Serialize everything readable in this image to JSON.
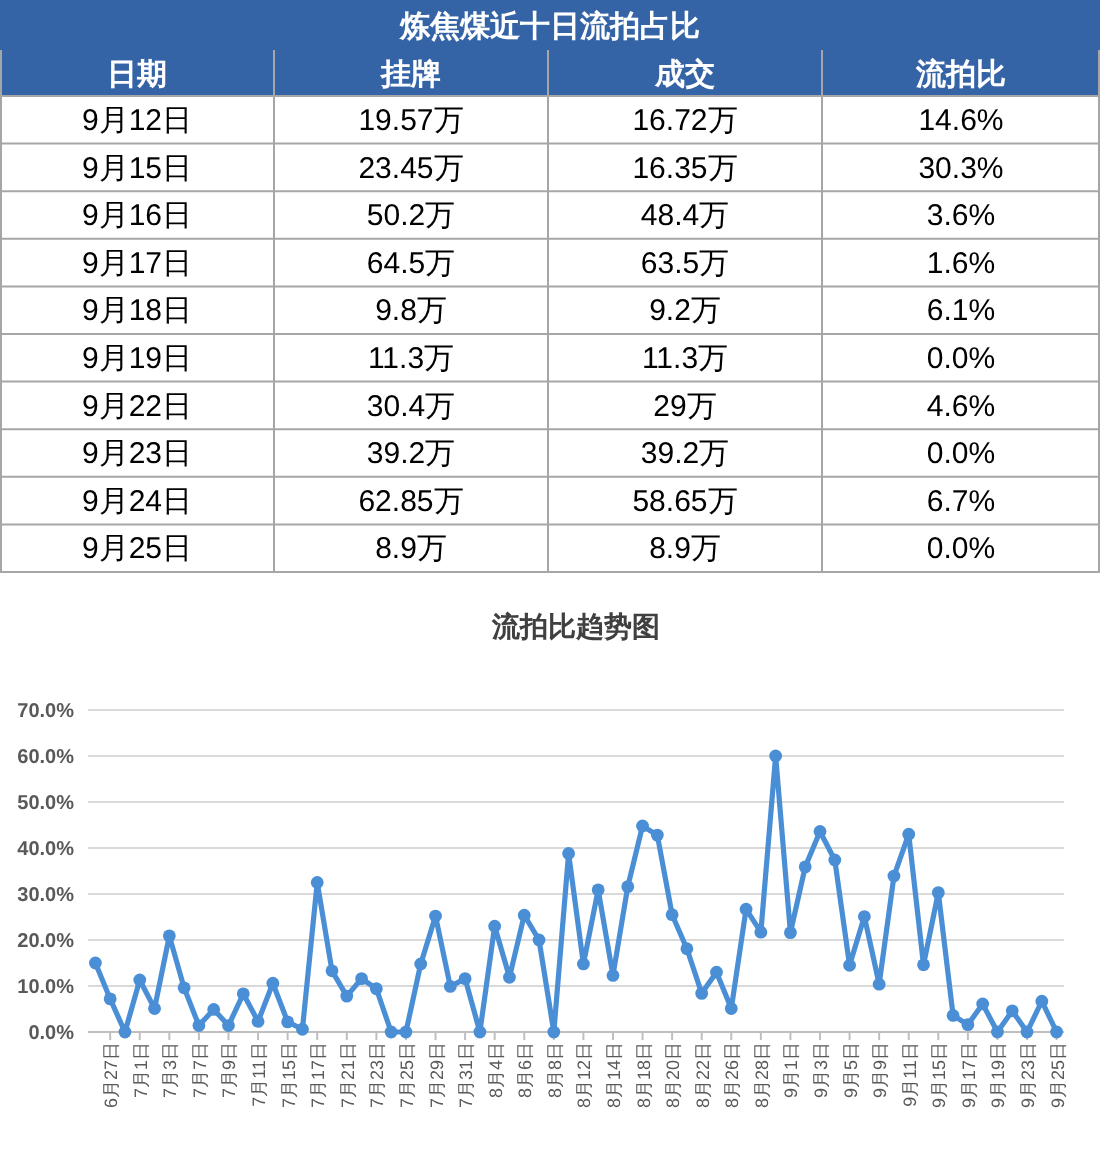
{
  "chart_data": [
    {
      "type": "other",
      "title": "炼焦煤近十日流拍占比",
      "ylabel": "日期",
      "categories": [
        "9月12日",
        "9月15日",
        "9月16日",
        "9月17日",
        "9月18日",
        "9月19日",
        "9月22日",
        "9月23日",
        "9月24日",
        "9月25日"
      ],
      "series": [
        {
          "name": "挂牌",
          "values": [
            19.57,
            23.45,
            50.2,
            64.5,
            9.8,
            11.3,
            30.4,
            39.2,
            62.85,
            8.9
          ],
          "value_labels": [
            "19.57万",
            "23.45万",
            "50.2万",
            "64.5万",
            "9.8万",
            "11.3万",
            "30.4万",
            "39.2万",
            "62.85万",
            "8.9万"
          ]
        },
        {
          "name": "成交",
          "values": [
            16.72,
            16.35,
            48.4,
            63.5,
            9.2,
            11.3,
            29,
            39.2,
            58.65,
            8.9
          ],
          "value_labels": [
            "16.72万",
            "16.35万",
            "48.4万",
            "63.5万",
            "9.2万",
            "11.3万",
            "29万",
            "39.2万",
            "58.65万",
            "8.9万"
          ]
        },
        {
          "name": "流拍比",
          "values": [
            14.6,
            30.3,
            3.6,
            1.6,
            6.1,
            0.0,
            4.6,
            0.0,
            6.7,
            0.0
          ],
          "value_labels": [
            "14.6%",
            "30.3%",
            "3.6%",
            "1.6%",
            "6.1%",
            "0.0%",
            "4.6%",
            "0.0%",
            "6.7%",
            "0.0%"
          ]
        }
      ]
    },
    {
      "type": "line",
      "title": "流拍比趋势图",
      "categories": [
        null,
        "6月27日",
        null,
        "7月1日",
        null,
        "7月3日",
        null,
        "7月7日",
        null,
        "7月9日",
        null,
        "7月11日",
        null,
        "7月15日",
        null,
        "7月17日",
        null,
        "7月21日",
        null,
        "7月23日",
        null,
        "7月25日",
        null,
        "7月29日",
        null,
        "7月31日",
        null,
        "8月4日",
        null,
        "8月6日",
        null,
        "8月8日",
        null,
        "8月12日",
        null,
        "8月14日",
        null,
        "8月18日",
        null,
        "8月20日",
        null,
        "8月22日",
        null,
        "8月26日",
        null,
        "8月28日",
        null,
        "9月1日",
        null,
        "9月3日",
        null,
        "9月5日",
        null,
        "9月9日",
        null,
        "9月11日",
        null,
        "9月15日",
        null,
        "9月17日",
        null,
        "9月19日",
        null,
        "9月23日",
        null,
        "9月25日"
      ],
      "series": [
        {
          "color": "#4a8fd6",
          "values": [
            15,
            7.2,
            0,
            11.3,
            5.1,
            20.9,
            9.6,
            1.4,
            4.9,
            1.4,
            8.3,
            2.3,
            10.6,
            2.2,
            0.6,
            32.5,
            13.3,
            7.8,
            11.6,
            9.4,
            0,
            0,
            14.8,
            25.2,
            9.9,
            11.6,
            0,
            23.0,
            11.9,
            25.4,
            20.0,
            0,
            38.8,
            14.8,
            30.9,
            12.3,
            31.6,
            44.8,
            42.8,
            25.5,
            18.1,
            8.4,
            13.0,
            5.1,
            26.7,
            21.7,
            60,
            21.6,
            35.9,
            43.6,
            37.4,
            14.5,
            25.1,
            10.4,
            33.9,
            43.0,
            14.6,
            30.3,
            3.6,
            1.6,
            6.1,
            0.0,
            4.6,
            0.0,
            6.7,
            0.0
          ]
        }
      ],
      "ylim": [
        0,
        70
      ],
      "yticks": [
        {
          "value": 0,
          "label": "0.0%"
        },
        {
          "value": 10,
          "label": "10.0%"
        },
        {
          "value": 20,
          "label": "20.0%"
        },
        {
          "value": 30,
          "label": "30.0%"
        },
        {
          "value": 40,
          "label": "40.0%"
        },
        {
          "value": 50,
          "label": "50.0%"
        },
        {
          "value": 60,
          "label": "60.0%"
        },
        {
          "value": 70,
          "label": "70.0%"
        }
      ],
      "grid": "y",
      "marker": "circle"
    }
  ]
}
